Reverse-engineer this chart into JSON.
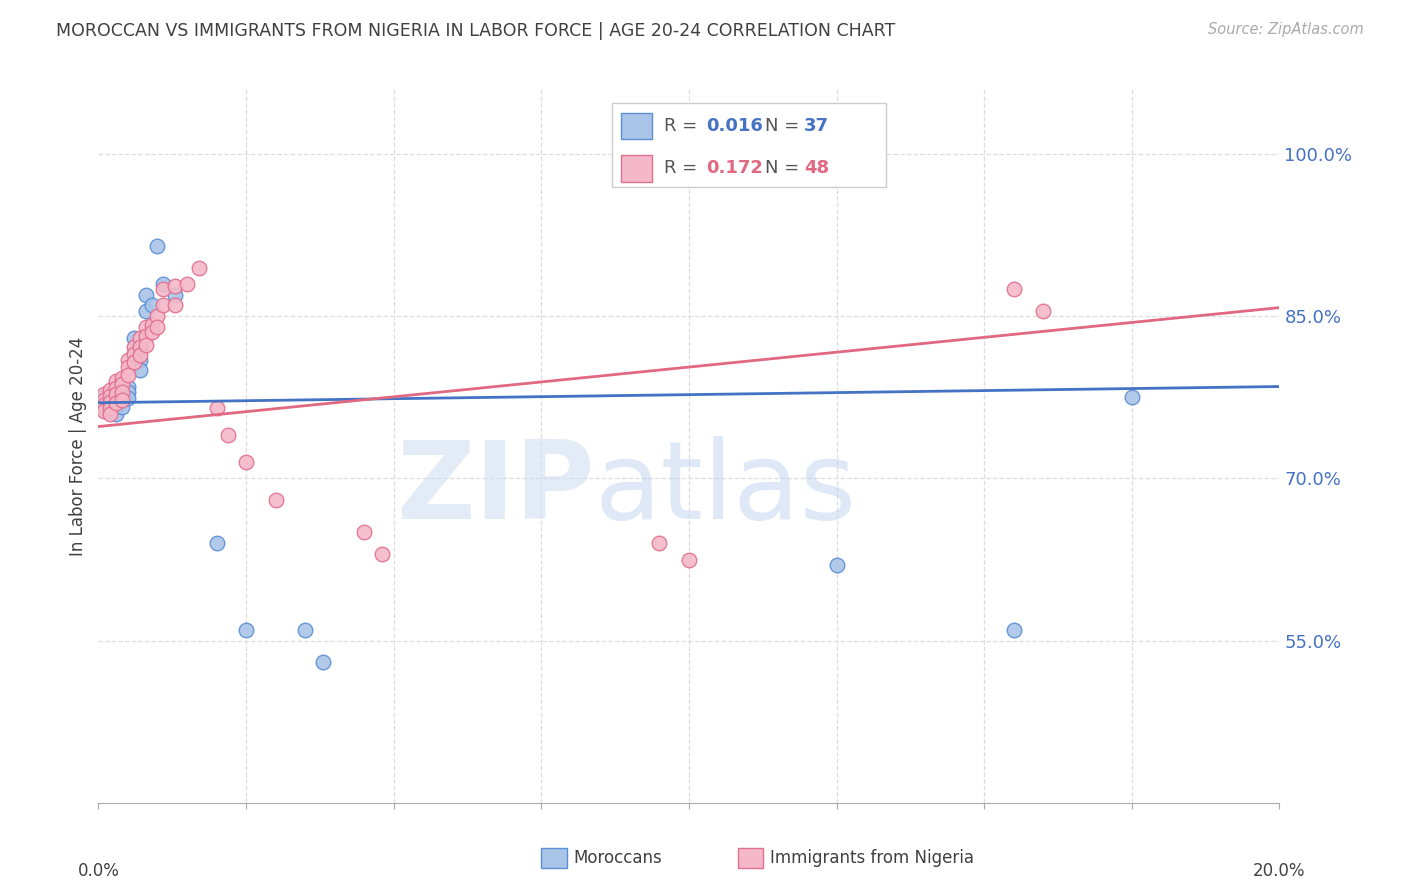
{
  "title": "MOROCCAN VS IMMIGRANTS FROM NIGERIA IN LABOR FORCE | AGE 20-24 CORRELATION CHART",
  "source": "Source: ZipAtlas.com",
  "ylabel": "In Labor Force | Age 20-24",
  "yticks": [
    0.55,
    0.7,
    0.85,
    1.0
  ],
  "ytick_labels": [
    "55.0%",
    "70.0%",
    "85.0%",
    "100.0%"
  ],
  "blue_face": "#aac4e8",
  "blue_edge": "#5b8fd4",
  "pink_face": "#f5b8c8",
  "pink_edge": "#e07090",
  "blue_line": "#4472c4",
  "pink_line": "#e06880",
  "axis_color": "#4472c4",
  "title_color": "#404040",
  "grid_color": "#dddddd",
  "blue_points_x": [
    0.001,
    0.001,
    0.001,
    0.002,
    0.002,
    0.002,
    0.002,
    0.003,
    0.003,
    0.003,
    0.003,
    0.003,
    0.004,
    0.004,
    0.004,
    0.004,
    0.005,
    0.005,
    0.005,
    0.006,
    0.006,
    0.007,
    0.007,
    0.007,
    0.008,
    0.008,
    0.009,
    0.01,
    0.011,
    0.013,
    0.02,
    0.025,
    0.035,
    0.038,
    0.125,
    0.155,
    0.175
  ],
  "blue_points_y": [
    0.775,
    0.77,
    0.765,
    0.775,
    0.772,
    0.768,
    0.762,
    0.78,
    0.775,
    0.77,
    0.766,
    0.76,
    0.782,
    0.778,
    0.772,
    0.766,
    0.785,
    0.78,
    0.774,
    0.83,
    0.815,
    0.82,
    0.81,
    0.8,
    0.87,
    0.855,
    0.86,
    0.915,
    0.88,
    0.87,
    0.64,
    0.56,
    0.56,
    0.53,
    0.62,
    0.56,
    0.775
  ],
  "pink_points_x": [
    0.001,
    0.001,
    0.001,
    0.001,
    0.002,
    0.002,
    0.002,
    0.002,
    0.002,
    0.003,
    0.003,
    0.003,
    0.003,
    0.004,
    0.004,
    0.004,
    0.004,
    0.005,
    0.005,
    0.005,
    0.006,
    0.006,
    0.006,
    0.007,
    0.007,
    0.007,
    0.008,
    0.008,
    0.008,
    0.009,
    0.009,
    0.01,
    0.01,
    0.011,
    0.011,
    0.013,
    0.013,
    0.015,
    0.017,
    0.02,
    0.022,
    0.025,
    0.03,
    0.045,
    0.048,
    0.095,
    0.1,
    0.155,
    0.16
  ],
  "pink_points_y": [
    0.778,
    0.773,
    0.768,
    0.762,
    0.782,
    0.776,
    0.771,
    0.765,
    0.76,
    0.79,
    0.784,
    0.778,
    0.77,
    0.793,
    0.787,
    0.78,
    0.773,
    0.81,
    0.803,
    0.796,
    0.822,
    0.815,
    0.808,
    0.83,
    0.822,
    0.814,
    0.84,
    0.832,
    0.823,
    0.842,
    0.835,
    0.85,
    0.84,
    0.875,
    0.86,
    0.878,
    0.86,
    0.88,
    0.895,
    0.765,
    0.74,
    0.715,
    0.68,
    0.65,
    0.63,
    0.64,
    0.625,
    0.875,
    0.855
  ],
  "xmin": 0.0,
  "xmax": 0.2,
  "ymin": 0.4,
  "ymax": 1.06,
  "blue_trend": [
    0.77,
    0.785
  ],
  "pink_trend": [
    0.748,
    0.858
  ],
  "xtick_positions": [
    0.0,
    0.025,
    0.05,
    0.075,
    0.1,
    0.125,
    0.15,
    0.175,
    0.2
  ]
}
